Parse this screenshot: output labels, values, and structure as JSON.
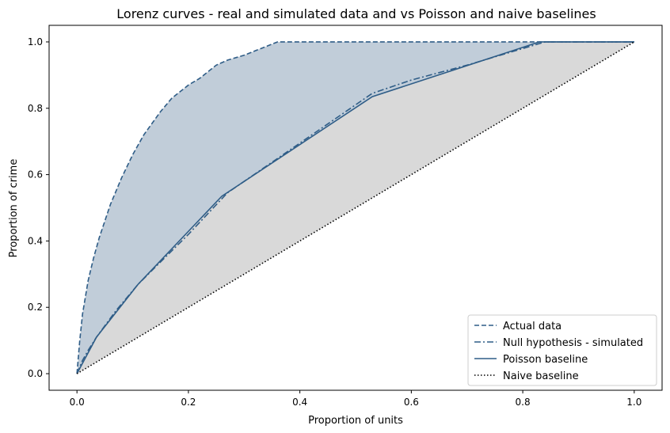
{
  "chart_data": {
    "type": "line",
    "title": "Lorenz curves - real and simulated data and vs Poisson and naive baselines",
    "xlabel": "Proportion of units",
    "ylabel": "Proportion of crime",
    "xlim": [
      -0.05,
      1.05
    ],
    "ylim": [
      -0.05,
      1.05
    ],
    "xticks": [
      "0.0",
      "0.2",
      "0.4",
      "0.6",
      "0.8",
      "1.0"
    ],
    "yticks": [
      "0.0",
      "0.2",
      "0.4",
      "0.6",
      "0.8",
      "1.0"
    ],
    "grid": false,
    "legend_position": "bottom-right",
    "fills": [
      {
        "between": [
          "Actual data",
          "Poisson baseline"
        ],
        "color": "#c1cdd9"
      },
      {
        "between": [
          "Poisson baseline",
          "Naive baseline"
        ],
        "color": "#d9d9d9"
      }
    ],
    "series": [
      {
        "name": "Actual data",
        "style": "dashed",
        "color": "#2f5d87",
        "points": [
          [
            0,
            0
          ],
          [
            0.005,
            0.1
          ],
          [
            0.01,
            0.18
          ],
          [
            0.02,
            0.28
          ],
          [
            0.03,
            0.35
          ],
          [
            0.04,
            0.41
          ],
          [
            0.06,
            0.51
          ],
          [
            0.08,
            0.59
          ],
          [
            0.1,
            0.66
          ],
          [
            0.12,
            0.72
          ],
          [
            0.15,
            0.79
          ],
          [
            0.17,
            0.83
          ],
          [
            0.2,
            0.87
          ],
          [
            0.22,
            0.89
          ],
          [
            0.25,
            0.93
          ],
          [
            0.27,
            0.945
          ],
          [
            0.3,
            0.96
          ],
          [
            0.33,
            0.98
          ],
          [
            0.36,
            1.0
          ],
          [
            0.5,
            1.0
          ],
          [
            0.7,
            1.0
          ],
          [
            1.0,
            1.0
          ]
        ]
      },
      {
        "name": "Null hypothesis - simulated",
        "style": "dashdot",
        "color": "#2f5d87",
        "points": [
          [
            0,
            0
          ],
          [
            0.01,
            0.04
          ],
          [
            0.02,
            0.07
          ],
          [
            0.035,
            0.11
          ],
          [
            0.07,
            0.19
          ],
          [
            0.11,
            0.27
          ],
          [
            0.2,
            0.42
          ],
          [
            0.27,
            0.545
          ],
          [
            0.4,
            0.695
          ],
          [
            0.53,
            0.845
          ],
          [
            0.6,
            0.885
          ],
          [
            0.7,
            0.93
          ],
          [
            0.84,
            1.0
          ],
          [
            1.0,
            1.0
          ]
        ]
      },
      {
        "name": "Poisson baseline",
        "style": "solid",
        "color": "#2f5d87",
        "points": [
          [
            0,
            0
          ],
          [
            0.035,
            0.11
          ],
          [
            0.11,
            0.27
          ],
          [
            0.26,
            0.535
          ],
          [
            0.53,
            0.835
          ],
          [
            0.83,
            1.0
          ],
          [
            1.0,
            1.0
          ]
        ]
      },
      {
        "name": "Naive baseline",
        "style": "dotted",
        "color": "#000000",
        "points": [
          [
            0,
            0
          ],
          [
            1,
            1
          ]
        ]
      }
    ]
  }
}
